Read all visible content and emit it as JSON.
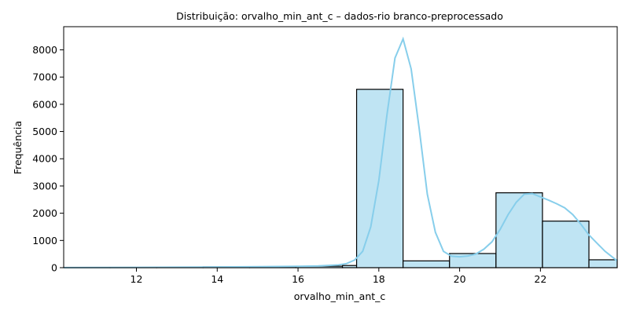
{
  "chart_data": {
    "type": "bar",
    "title": "Distribuição: orvalho_min_ant_c – dados-rio branco-preprocessado",
    "xlabel": "orvalho_min_ant_c",
    "ylabel": "Frequência",
    "xlim": [
      10.2,
      23.9
    ],
    "ylim": [
      0,
      8850
    ],
    "x_ticks": [
      12,
      14,
      16,
      18,
      20,
      22
    ],
    "y_ticks": [
      0,
      1000,
      2000,
      3000,
      4000,
      5000,
      6000,
      7000,
      8000
    ],
    "bins": [
      {
        "start": 10.2,
        "end": 11.35,
        "value": 3
      },
      {
        "start": 11.35,
        "end": 12.5,
        "value": 6
      },
      {
        "start": 12.5,
        "end": 13.65,
        "value": 15
      },
      {
        "start": 13.65,
        "end": 14.8,
        "value": 30
      },
      {
        "start": 14.8,
        "end": 15.95,
        "value": 40
      },
      {
        "start": 15.95,
        "end": 17.1,
        "value": 55
      },
      {
        "start": 17.1,
        "end": 17.45,
        "value": 80
      },
      {
        "start": 17.45,
        "end": 18.6,
        "value": 6550
      },
      {
        "start": 18.6,
        "end": 19.75,
        "value": 250
      },
      {
        "start": 19.75,
        "end": 20.9,
        "value": 520
      },
      {
        "start": 20.9,
        "end": 22.05,
        "value": 2750
      },
      {
        "start": 22.05,
        "end": 23.2,
        "value": 1710
      },
      {
        "start": 23.2,
        "end": 23.9,
        "value": 290
      }
    ],
    "kde": {
      "x": [
        10.2,
        11,
        12,
        13,
        14,
        15,
        16,
        16.5,
        17,
        17.2,
        17.4,
        17.6,
        17.8,
        18,
        18.2,
        18.4,
        18.6,
        18.8,
        19,
        19.2,
        19.4,
        19.6,
        19.8,
        20,
        20.2,
        20.4,
        20.6,
        20.8,
        21,
        21.2,
        21.4,
        21.6,
        21.8,
        22,
        22.2,
        22.4,
        22.6,
        22.8,
        23,
        23.2,
        23.4,
        23.6,
        23.9
      ],
      "y": [
        5,
        8,
        12,
        18,
        25,
        35,
        50,
        65,
        100,
        150,
        280,
        600,
        1500,
        3200,
        5600,
        7700,
        8400,
        7300,
        5100,
        2700,
        1300,
        600,
        420,
        400,
        430,
        500,
        680,
        950,
        1400,
        1950,
        2400,
        2700,
        2720,
        2600,
        2480,
        2350,
        2200,
        1950,
        1600,
        1200,
        900,
        600,
        250
      ]
    },
    "colors": {
      "bar_fill": "#bfe4f3",
      "kde_line": "#87ceeb",
      "bar_edge": "#000000"
    },
    "grid": false
  }
}
